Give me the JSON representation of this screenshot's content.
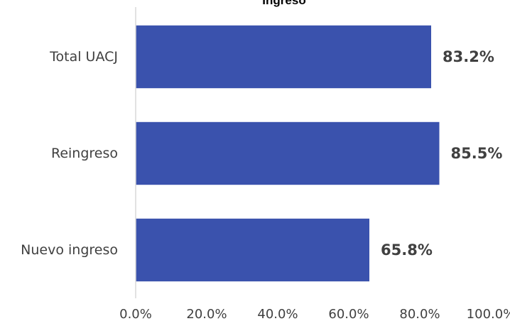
{
  "chart_data": {
    "type": "bar",
    "orientation": "horizontal",
    "title": "Ingreso",
    "categories": [
      "Total UACJ",
      "Reingreso",
      "Nuevo ingreso"
    ],
    "values": [
      83.2,
      85.5,
      65.8
    ],
    "value_labels": [
      "83.2%",
      "85.5%",
      "65.8%"
    ],
    "xlim": [
      0,
      100
    ],
    "x_ticks": [
      "0.0%",
      "20.0%",
      "40.0%",
      "60.0%",
      "80.0%",
      "100.0%"
    ],
    "grid": false,
    "legend": "none"
  },
  "colors": {
    "bar": "#3a52ad",
    "axis": "#d9d9d9",
    "text": "#404040"
  }
}
